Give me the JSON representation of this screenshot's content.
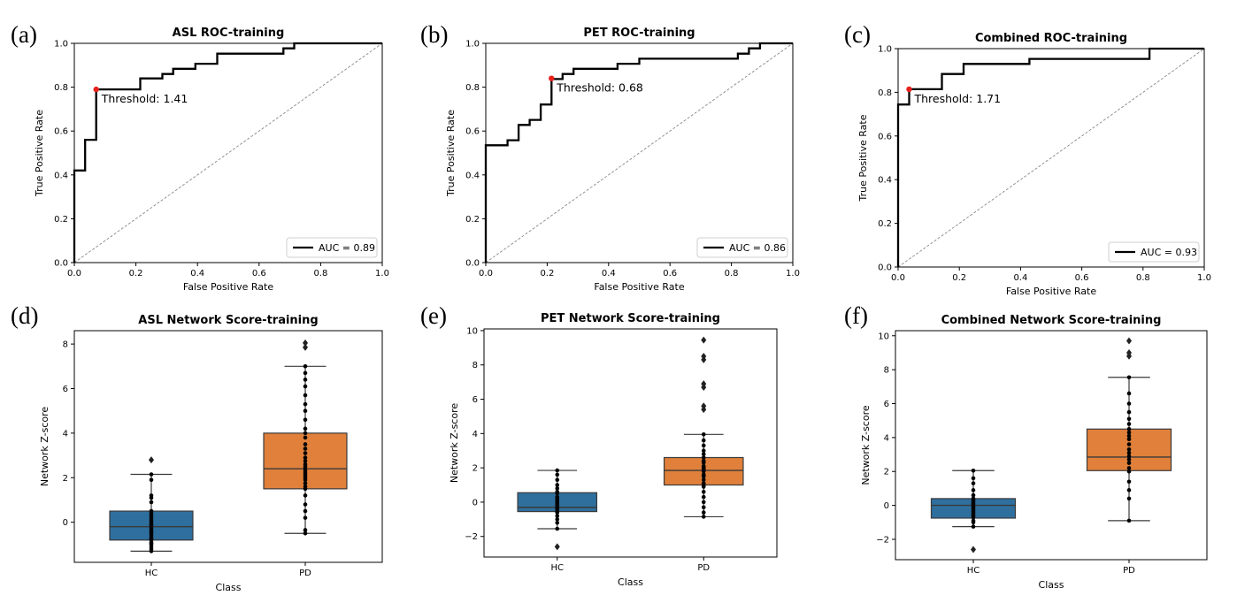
{
  "colors": {
    "line": "#000000",
    "diagonal": "#888888",
    "threshold": "#e8211c",
    "hc_box": "#2f6f9e",
    "pd_box": "#e0803b",
    "median": "#3a3a3a"
  },
  "chart_data": [
    {
      "type": "line",
      "id": "a",
      "panel_label": "(a)",
      "title": "ASL ROC-training",
      "xlabel": "False Positive Rate",
      "ylabel": "True Positive Rate",
      "xlim": [
        0,
        1
      ],
      "ylim": [
        0,
        1
      ],
      "xticks": [
        "0.0",
        "0.2",
        "0.4",
        "0.6",
        "0.8",
        "1.0"
      ],
      "yticks": [
        "0.0",
        "0.2",
        "0.4",
        "0.6",
        "0.8",
        "1.0"
      ],
      "roc": [
        [
          0,
          0
        ],
        [
          0,
          0.42
        ],
        [
          0.035,
          0.42
        ],
        [
          0.035,
          0.56
        ],
        [
          0.071,
          0.56
        ],
        [
          0.071,
          0.79
        ],
        [
          0.214,
          0.79
        ],
        [
          0.214,
          0.84
        ],
        [
          0.286,
          0.84
        ],
        [
          0.286,
          0.86
        ],
        [
          0.321,
          0.86
        ],
        [
          0.321,
          0.884
        ],
        [
          0.393,
          0.884
        ],
        [
          0.393,
          0.907
        ],
        [
          0.464,
          0.907
        ],
        [
          0.464,
          0.953
        ],
        [
          0.679,
          0.953
        ],
        [
          0.679,
          0.977
        ],
        [
          0.714,
          0.977
        ],
        [
          0.714,
          1.0
        ],
        [
          1.0,
          1.0
        ]
      ],
      "threshold_point": [
        0.071,
        0.79
      ],
      "threshold_label": "Threshold: 1.41",
      "legend": "AUC = 0.89",
      "legend_position": "lower right"
    },
    {
      "type": "line",
      "id": "b",
      "panel_label": "(b)",
      "title": "PET ROC-training",
      "xlabel": "False Positive Rate",
      "ylabel": "True Positive Rate",
      "xlim": [
        0,
        1
      ],
      "ylim": [
        0,
        1
      ],
      "xticks": [
        "0.0",
        "0.2",
        "0.4",
        "0.6",
        "0.8",
        "1.0"
      ],
      "yticks": [
        "0.0",
        "0.2",
        "0.4",
        "0.6",
        "0.8",
        "1.0"
      ],
      "roc": [
        [
          0,
          0
        ],
        [
          0,
          0.535
        ],
        [
          0.071,
          0.535
        ],
        [
          0.071,
          0.558
        ],
        [
          0.107,
          0.558
        ],
        [
          0.107,
          0.628
        ],
        [
          0.143,
          0.628
        ],
        [
          0.143,
          0.651
        ],
        [
          0.179,
          0.651
        ],
        [
          0.179,
          0.721
        ],
        [
          0.214,
          0.721
        ],
        [
          0.214,
          0.837
        ],
        [
          0.25,
          0.837
        ],
        [
          0.25,
          0.86
        ],
        [
          0.25,
          0.86
        ],
        [
          0.286,
          0.86
        ],
        [
          0.286,
          0.884
        ],
        [
          0.429,
          0.884
        ],
        [
          0.429,
          0.907
        ],
        [
          0.5,
          0.907
        ],
        [
          0.5,
          0.93
        ],
        [
          0.821,
          0.93
        ],
        [
          0.821,
          0.953
        ],
        [
          0.857,
          0.953
        ],
        [
          0.857,
          0.977
        ],
        [
          0.893,
          0.977
        ],
        [
          0.893,
          1.0
        ],
        [
          1.0,
          1.0
        ]
      ],
      "threshold_point": [
        0.214,
        0.84
      ],
      "threshold_label": "Threshold: 0.68",
      "legend": "AUC = 0.86",
      "legend_position": "lower right"
    },
    {
      "type": "line",
      "id": "c",
      "panel_label": "(c)",
      "title": "Combined ROC-training",
      "xlabel": "False Positive Rate",
      "ylabel": "True Positive Rate",
      "xlim": [
        0,
        1
      ],
      "ylim": [
        0,
        1
      ],
      "xticks": [
        "0.0",
        "0.2",
        "0.4",
        "0.6",
        "0.8",
        "1.0"
      ],
      "yticks": [
        "0.0",
        "0.2",
        "0.4",
        "0.6",
        "0.8",
        "1.0"
      ],
      "roc": [
        [
          0,
          0
        ],
        [
          0,
          0.744
        ],
        [
          0.036,
          0.744
        ],
        [
          0.036,
          0.814
        ],
        [
          0.143,
          0.814
        ],
        [
          0.143,
          0.884
        ],
        [
          0.214,
          0.884
        ],
        [
          0.214,
          0.93
        ],
        [
          0.429,
          0.93
        ],
        [
          0.429,
          0.953
        ],
        [
          0.821,
          0.953
        ],
        [
          0.821,
          1.0
        ],
        [
          1.0,
          1.0
        ]
      ],
      "threshold_point": [
        0.036,
        0.814
      ],
      "threshold_label": "Threshold: 1.71",
      "legend": "AUC = 0.93",
      "legend_position": "lower right"
    },
    {
      "type": "box",
      "id": "d",
      "panel_label": "(d)",
      "title": "ASL Network Score-training",
      "xlabel": "Class",
      "ylabel": "Network Z-score",
      "ylim": [
        -1.8,
        8.6
      ],
      "yticks": [
        0,
        2,
        4,
        6,
        8
      ],
      "ytick_labels": [
        "0",
        "2",
        "4",
        "6",
        "8"
      ],
      "categories": [
        "HC",
        "PD"
      ],
      "boxes": [
        {
          "name": "HC",
          "q1": -0.8,
          "median": -0.2,
          "q3": 0.5,
          "whislo": -1.3,
          "whishi": 2.15,
          "fliers": [
            2.8
          ],
          "points": [
            -1.3,
            -1.2,
            -1.1,
            -1.0,
            -0.95,
            -0.9,
            -0.8,
            -0.75,
            -0.7,
            -0.6,
            -0.5,
            -0.45,
            -0.4,
            -0.3,
            -0.2,
            -0.15,
            -0.1,
            0.0,
            0.1,
            0.2,
            0.3,
            0.4,
            0.5,
            0.9,
            1.1,
            1.2,
            1.9,
            2.15,
            2.8
          ]
        },
        {
          "name": "PD",
          "q1": 1.5,
          "median": 2.4,
          "q3": 4.0,
          "whislo": -0.5,
          "whishi": 7.0,
          "fliers": [
            7.85,
            8.05
          ],
          "points": [
            -0.5,
            -0.35,
            0.2,
            0.5,
            0.8,
            1.2,
            1.5,
            1.6,
            1.75,
            1.9,
            2.0,
            2.1,
            2.2,
            2.3,
            2.4,
            2.5,
            2.6,
            2.75,
            2.9,
            3.1,
            3.3,
            3.5,
            3.8,
            4.0,
            4.2,
            4.6,
            5.0,
            5.3,
            5.7,
            6.1,
            6.4,
            6.7,
            7.0,
            7.85,
            8.05
          ]
        }
      ]
    },
    {
      "type": "box",
      "id": "e",
      "panel_label": "(e)",
      "title": "PET Network Score-training",
      "xlabel": "Class",
      "ylabel": "Network Z-score",
      "ylim": [
        -3.2,
        10.1
      ],
      "yticks": [
        -2,
        0,
        2,
        4,
        6,
        8,
        10
      ],
      "ytick_labels": [
        "−2",
        "0",
        "2",
        "4",
        "6",
        "8",
        "10"
      ],
      "categories": [
        "HC",
        "PD"
      ],
      "boxes": [
        {
          "name": "HC",
          "q1": -0.55,
          "median": -0.3,
          "q3": 0.55,
          "whislo": -1.55,
          "whishi": 1.85,
          "fliers": [
            -2.6
          ],
          "points": [
            -1.55,
            -1.2,
            -1.0,
            -0.8,
            -0.6,
            -0.5,
            -0.4,
            -0.3,
            -0.2,
            -0.1,
            0.0,
            0.1,
            0.2,
            0.3,
            0.5,
            0.6,
            0.8,
            1.0,
            1.3,
            1.6,
            1.85,
            -2.6
          ]
        },
        {
          "name": "PD",
          "q1": 1.0,
          "median": 1.85,
          "q3": 2.6,
          "whislo": -0.85,
          "whishi": 3.95,
          "fliers": [
            5.4,
            5.6,
            6.7,
            6.9,
            8.3,
            8.5,
            9.45
          ],
          "points": [
            -0.85,
            -0.6,
            -0.3,
            0.0,
            0.3,
            0.6,
            0.9,
            1.0,
            1.1,
            1.3,
            1.5,
            1.6,
            1.8,
            1.9,
            2.0,
            2.1,
            2.3,
            2.4,
            2.6,
            2.8,
            3.0,
            3.3,
            3.6,
            3.95,
            5.4,
            5.6,
            6.7,
            6.9,
            8.3,
            8.5,
            9.45
          ]
        }
      ]
    },
    {
      "type": "box",
      "id": "f",
      "panel_label": "(f)",
      "title": "Combined Network Score-training",
      "xlabel": "Class",
      "ylabel": "Network Z-score",
      "ylim": [
        -3.2,
        10.3
      ],
      "yticks": [
        -2,
        0,
        2,
        4,
        6,
        8,
        10
      ],
      "ytick_labels": [
        "−2",
        "0",
        "2",
        "4",
        "6",
        "8",
        "10"
      ],
      "categories": [
        "HC",
        "PD"
      ],
      "boxes": [
        {
          "name": "HC",
          "q1": -0.75,
          "median": 0.0,
          "q3": 0.4,
          "whislo": -1.25,
          "whishi": 2.05,
          "fliers": [
            -2.6
          ],
          "points": [
            -1.25,
            -1.0,
            -0.9,
            -0.7,
            -0.6,
            -0.5,
            -0.4,
            -0.3,
            -0.2,
            -0.1,
            0.0,
            0.1,
            0.2,
            0.3,
            0.4,
            0.6,
            0.9,
            1.3,
            1.6,
            2.05,
            -2.6
          ]
        },
        {
          "name": "PD",
          "q1": 2.05,
          "median": 2.85,
          "q3": 4.5,
          "whislo": -0.9,
          "whishi": 7.55,
          "fliers": [
            8.8,
            9.0,
            9.7
          ],
          "points": [
            -0.9,
            0.4,
            0.9,
            1.4,
            2.0,
            2.2,
            2.5,
            2.7,
            2.9,
            3.1,
            3.3,
            3.6,
            3.9,
            4.1,
            4.3,
            4.5,
            4.8,
            5.1,
            5.5,
            6.0,
            6.6,
            7.55,
            8.8,
            9.0,
            9.7
          ]
        }
      ]
    }
  ]
}
